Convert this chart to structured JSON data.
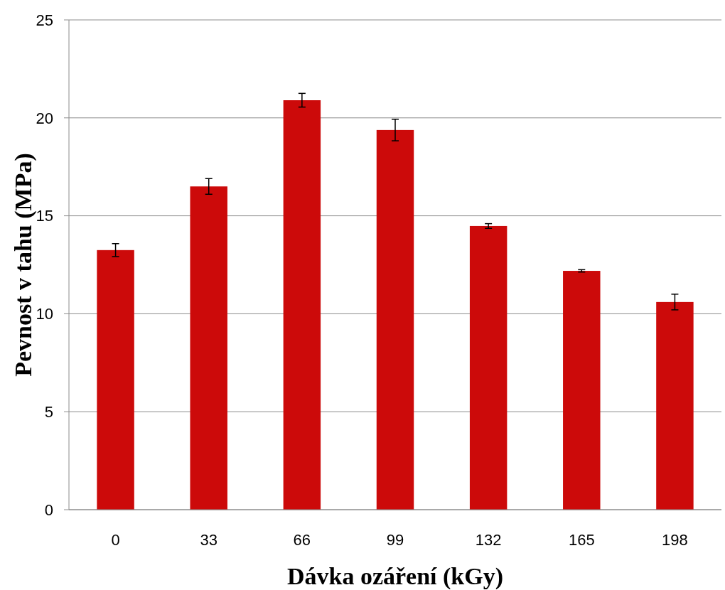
{
  "chart_data": {
    "type": "bar",
    "xlabel": "Dávka ozáření (kGy)",
    "ylabel": "Pevnost v tahu (MPa)",
    "categories": [
      "0",
      "33",
      "66",
      "99",
      "132",
      "165",
      "198"
    ],
    "values": [
      13.25,
      16.5,
      20.9,
      19.38,
      14.48,
      12.19,
      10.6
    ],
    "errors": [
      0.33,
      0.4,
      0.35,
      0.55,
      0.12,
      0.06,
      0.4
    ],
    "color": "#cc0a0a",
    "ylim": [
      0,
      25
    ],
    "yticks": [
      0,
      5,
      10,
      15,
      20,
      25
    ],
    "grid": "y"
  }
}
